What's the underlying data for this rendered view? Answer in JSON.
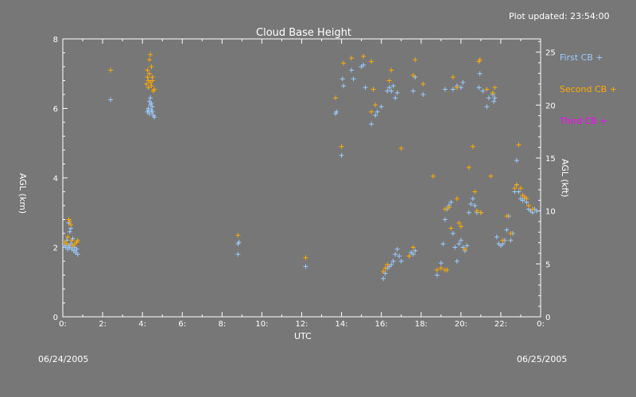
{
  "header": {
    "updated": "Plot updated: 23:54:00"
  },
  "footer": {
    "date_left": "06/24/2005",
    "date_right": "06/25/2005"
  },
  "chart_data": {
    "type": "scatter",
    "title": "Cloud Base Height",
    "xlabel": "UTC",
    "ylabel_left": "AGL (km)",
    "ylabel_right": "AGL (kft)",
    "xlim": [
      0,
      24
    ],
    "ylim": [
      0,
      8
    ],
    "ylim_right": [
      0,
      26.25
    ],
    "x_ticks": [
      0,
      2,
      4,
      6,
      8,
      10,
      12,
      14,
      16,
      18,
      20,
      22,
      24
    ],
    "x_tick_labels": [
      "0:",
      "2:",
      "4:",
      "6:",
      "8:",
      "10:",
      "12:",
      "14:",
      "16:",
      "18:",
      "20:",
      "22:",
      "0:"
    ],
    "y_ticks": [
      0,
      2,
      4,
      6,
      8
    ],
    "y_ticks_right": [
      0,
      5,
      10,
      15,
      20,
      25
    ],
    "grid": false,
    "legend_position": "right",
    "series": [
      {
        "name": "First CB",
        "color": "#99ccff",
        "points": [
          [
            0.1,
            2.05
          ],
          [
            0.15,
            2.0
          ],
          [
            0.2,
            2.1
          ],
          [
            0.25,
            1.95
          ],
          [
            0.3,
            2.05
          ],
          [
            0.35,
            2.0
          ],
          [
            0.4,
            2.1
          ],
          [
            0.45,
            1.95
          ],
          [
            0.5,
            2.05
          ],
          [
            0.55,
            1.9
          ],
          [
            0.6,
            2.0
          ],
          [
            0.65,
            1.85
          ],
          [
            0.7,
            1.95
          ],
          [
            0.75,
            1.8
          ],
          [
            0.3,
            2.7
          ],
          [
            0.4,
            2.55
          ],
          [
            0.35,
            2.45
          ],
          [
            0.2,
            2.2
          ],
          [
            0.5,
            2.25
          ],
          [
            2.4,
            6.25
          ],
          [
            4.25,
            5.9
          ],
          [
            4.3,
            6.0
          ],
          [
            4.35,
            5.85
          ],
          [
            4.4,
            6.1
          ],
          [
            4.45,
            5.95
          ],
          [
            4.5,
            6.05
          ],
          [
            4.55,
            5.8
          ],
          [
            4.35,
            6.2
          ],
          [
            4.4,
            6.3
          ],
          [
            4.6,
            5.75
          ],
          [
            4.5,
            5.9
          ],
          [
            4.45,
            6.15
          ],
          [
            4.3,
            5.95
          ],
          [
            8.8,
            2.1
          ],
          [
            8.85,
            2.15
          ],
          [
            8.8,
            1.8
          ],
          [
            12.2,
            1.45
          ],
          [
            13.7,
            5.85
          ],
          [
            13.75,
            5.9
          ],
          [
            14.0,
            4.65
          ],
          [
            14.05,
            6.85
          ],
          [
            14.1,
            6.65
          ],
          [
            14.5,
            7.1
          ],
          [
            14.6,
            6.85
          ],
          [
            15.0,
            7.2
          ],
          [
            15.1,
            7.25
          ],
          [
            15.2,
            6.6
          ],
          [
            15.5,
            5.55
          ],
          [
            15.6,
            6.55
          ],
          [
            15.7,
            5.8
          ],
          [
            15.8,
            5.9
          ],
          [
            16.0,
            6.05
          ],
          [
            16.3,
            6.5
          ],
          [
            16.4,
            6.6
          ],
          [
            16.5,
            6.5
          ],
          [
            16.6,
            6.65
          ],
          [
            16.7,
            6.3
          ],
          [
            16.8,
            6.45
          ],
          [
            17.6,
            6.5
          ],
          [
            17.7,
            6.9
          ],
          [
            18.1,
            6.4
          ],
          [
            19.2,
            6.55
          ],
          [
            19.6,
            6.55
          ],
          [
            19.8,
            6.65
          ],
          [
            20.0,
            6.6
          ],
          [
            20.1,
            6.75
          ],
          [
            20.9,
            6.6
          ],
          [
            20.95,
            7.0
          ],
          [
            21.1,
            6.5
          ],
          [
            21.3,
            6.05
          ],
          [
            21.4,
            6.3
          ],
          [
            21.6,
            6.4
          ],
          [
            21.65,
            6.2
          ],
          [
            21.7,
            6.3
          ],
          [
            16.1,
            1.1
          ],
          [
            16.2,
            1.25
          ],
          [
            16.3,
            1.4
          ],
          [
            16.4,
            1.45
          ],
          [
            16.5,
            1.5
          ],
          [
            16.6,
            1.6
          ],
          [
            16.7,
            1.8
          ],
          [
            16.8,
            1.95
          ],
          [
            16.9,
            1.75
          ],
          [
            17.0,
            1.6
          ],
          [
            17.4,
            1.75
          ],
          [
            17.5,
            1.85
          ],
          [
            17.6,
            1.8
          ],
          [
            17.7,
            1.9
          ],
          [
            18.8,
            1.2
          ],
          [
            19.0,
            1.55
          ],
          [
            19.1,
            2.1
          ],
          [
            19.2,
            2.8
          ],
          [
            19.3,
            3.1
          ],
          [
            19.4,
            3.2
          ],
          [
            19.5,
            3.3
          ],
          [
            19.6,
            2.4
          ],
          [
            19.7,
            2.0
          ],
          [
            19.8,
            1.6
          ],
          [
            19.9,
            2.1
          ],
          [
            20.0,
            2.2
          ],
          [
            20.1,
            2.0
          ],
          [
            20.2,
            1.9
          ],
          [
            20.3,
            2.05
          ],
          [
            20.4,
            3.0
          ],
          [
            20.5,
            3.25
          ],
          [
            20.6,
            3.4
          ],
          [
            20.7,
            3.2
          ],
          [
            20.8,
            3.0
          ],
          [
            21.0,
            3.0
          ],
          [
            21.8,
            2.3
          ],
          [
            21.9,
            2.1
          ],
          [
            22.0,
            2.05
          ],
          [
            22.1,
            2.1
          ],
          [
            22.2,
            2.2
          ],
          [
            22.3,
            2.5
          ],
          [
            22.4,
            2.9
          ],
          [
            22.5,
            2.2
          ],
          [
            22.6,
            2.4
          ],
          [
            22.7,
            3.6
          ],
          [
            22.8,
            3.8
          ],
          [
            22.9,
            3.6
          ],
          [
            23.0,
            3.4
          ],
          [
            23.1,
            3.35
          ],
          [
            23.2,
            3.4
          ],
          [
            23.3,
            3.3
          ],
          [
            23.4,
            3.1
          ],
          [
            23.5,
            3.05
          ],
          [
            23.6,
            3.0
          ],
          [
            23.7,
            3.1
          ],
          [
            23.8,
            3.05
          ],
          [
            22.8,
            4.5
          ]
        ]
      },
      {
        "name": "Second CB",
        "color": "#ffaa00",
        "points": [
          [
            0.1,
            2.15
          ],
          [
            0.2,
            2.1
          ],
          [
            0.3,
            2.8
          ],
          [
            0.35,
            2.75
          ],
          [
            0.4,
            2.65
          ],
          [
            0.45,
            2.2
          ],
          [
            0.5,
            2.05
          ],
          [
            0.6,
            2.1
          ],
          [
            0.7,
            2.15
          ],
          [
            0.75,
            2.2
          ],
          [
            0.25,
            2.3
          ],
          [
            2.4,
            7.1
          ],
          [
            4.2,
            6.7
          ],
          [
            4.25,
            6.9
          ],
          [
            4.3,
            6.6
          ],
          [
            4.35,
            7.0
          ],
          [
            4.4,
            6.75
          ],
          [
            4.45,
            7.2
          ],
          [
            4.5,
            6.8
          ],
          [
            4.55,
            6.5
          ],
          [
            4.6,
            6.55
          ],
          [
            4.35,
            7.4
          ],
          [
            4.4,
            7.55
          ],
          [
            4.3,
            6.8
          ],
          [
            4.5,
            6.9
          ],
          [
            4.25,
            7.1
          ],
          [
            4.45,
            6.65
          ],
          [
            8.8,
            2.35
          ],
          [
            12.2,
            1.7
          ],
          [
            13.7,
            6.3
          ],
          [
            14.0,
            4.9
          ],
          [
            14.1,
            7.3
          ],
          [
            14.5,
            7.45
          ],
          [
            15.1,
            7.5
          ],
          [
            15.5,
            7.35
          ],
          [
            15.6,
            6.55
          ],
          [
            15.7,
            6.1
          ],
          [
            15.5,
            5.9
          ],
          [
            16.5,
            7.1
          ],
          [
            16.4,
            6.8
          ],
          [
            17.0,
            4.85
          ],
          [
            17.7,
            7.4
          ],
          [
            17.6,
            6.95
          ],
          [
            18.1,
            6.7
          ],
          [
            19.6,
            6.9
          ],
          [
            19.8,
            6.6
          ],
          [
            20.9,
            7.35
          ],
          [
            20.95,
            7.4
          ],
          [
            21.3,
            6.55
          ],
          [
            21.7,
            6.6
          ],
          [
            21.6,
            6.45
          ],
          [
            16.1,
            1.3
          ],
          [
            16.2,
            1.4
          ],
          [
            16.3,
            1.5
          ],
          [
            17.4,
            1.75
          ],
          [
            17.6,
            2.0
          ],
          [
            18.6,
            4.05
          ],
          [
            18.8,
            1.35
          ],
          [
            19.0,
            1.4
          ],
          [
            19.2,
            3.1
          ],
          [
            19.3,
            1.35
          ],
          [
            19.4,
            3.15
          ],
          [
            19.5,
            2.55
          ],
          [
            19.8,
            3.4
          ],
          [
            19.9,
            2.7
          ],
          [
            20.0,
            2.6
          ],
          [
            20.4,
            4.3
          ],
          [
            20.6,
            4.9
          ],
          [
            20.7,
            3.6
          ],
          [
            20.8,
            3.05
          ],
          [
            21.0,
            3.0
          ],
          [
            21.5,
            4.05
          ],
          [
            22.1,
            2.2
          ],
          [
            22.3,
            2.9
          ],
          [
            22.5,
            2.4
          ],
          [
            22.7,
            3.7
          ],
          [
            22.8,
            3.8
          ],
          [
            22.9,
            4.95
          ],
          [
            23.0,
            3.7
          ],
          [
            23.1,
            3.5
          ],
          [
            23.2,
            3.45
          ],
          [
            23.3,
            3.4
          ],
          [
            23.4,
            3.2
          ],
          [
            23.6,
            3.1
          ],
          [
            19.2,
            1.35
          ],
          [
            20.2,
            1.95
          ]
        ]
      },
      {
        "name": "Third CB",
        "color": "#ff00ff",
        "points": []
      }
    ]
  }
}
